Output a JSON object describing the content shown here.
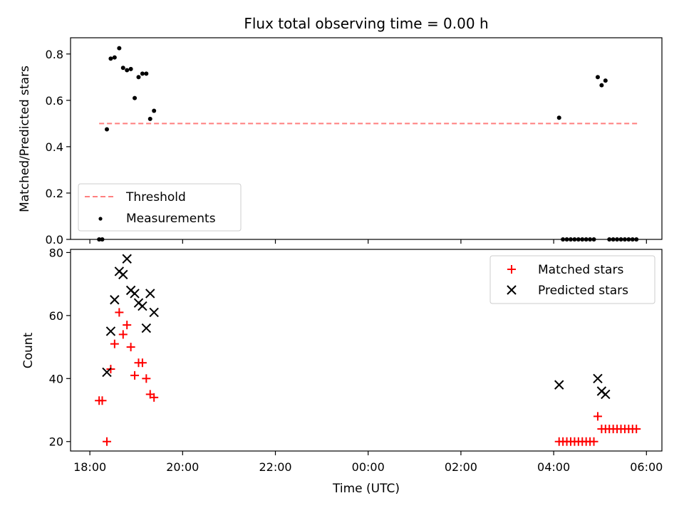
{
  "title": "Flux total observing time = 0.00 h",
  "colors": {
    "threshold": "#ff7f7f",
    "measurements": "#000000",
    "matched": "#ff0000",
    "predicted": "#000000"
  },
  "chart_data": [
    {
      "type": "scatter",
      "title": "Flux total observing time = 0.00 h",
      "xlabel": "",
      "ylabel": "Matched/Predicted stars",
      "xlim": [
        "2023-01-01T17:35",
        "2023-01-02T06:20"
      ],
      "ylim": [
        0,
        0.87
      ],
      "yticks": [
        0.0,
        0.2,
        0.4,
        0.6,
        0.8
      ],
      "ytick_labels": [
        "0.0",
        "0.2",
        "0.4",
        "0.6",
        "0.8"
      ],
      "xticks": [
        "2023-01-01T18:00",
        "2023-01-01T20:00",
        "2023-01-01T22:00",
        "2023-01-02T00:00",
        "2023-01-02T02:00",
        "2023-01-02T04:00",
        "2023-01-02T06:00"
      ],
      "xtick_labels": [
        "",
        "",
        "",
        "",
        "",
        "",
        ""
      ],
      "grid": false,
      "legend": "lower-left",
      "series": [
        {
          "name": "Threshold",
          "kind": "line",
          "style": "dashed",
          "x": [
            "2023-01-01T18:12",
            "2023-01-02T05:48"
          ],
          "y": [
            0.5,
            0.5
          ]
        },
        {
          "name": "Measurements",
          "kind": "scatter",
          "x": [
            "2023-01-01T18:12",
            "2023-01-01T18:16",
            "2023-01-01T18:22",
            "2023-01-01T18:27",
            "2023-01-01T18:32",
            "2023-01-01T18:38",
            "2023-01-01T18:43",
            "2023-01-01T18:48",
            "2023-01-01T18:53",
            "2023-01-01T18:58",
            "2023-01-01T19:03",
            "2023-01-01T19:08",
            "2023-01-01T19:13",
            "2023-01-01T19:18",
            "2023-01-01T19:23",
            "2023-01-02T04:07",
            "2023-01-02T04:12",
            "2023-01-02T04:17",
            "2023-01-02T04:22",
            "2023-01-02T04:27",
            "2023-01-02T04:32",
            "2023-01-02T04:37",
            "2023-01-02T04:42",
            "2023-01-02T04:47",
            "2023-01-02T04:52",
            "2023-01-02T04:57",
            "2023-01-02T05:02",
            "2023-01-02T05:07",
            "2023-01-02T05:12",
            "2023-01-02T05:17",
            "2023-01-02T05:22",
            "2023-01-02T05:27",
            "2023-01-02T05:32",
            "2023-01-02T05:37",
            "2023-01-02T05:42",
            "2023-01-02T05:47"
          ],
          "y": [
            0.0,
            0.0,
            0.475,
            0.78,
            0.785,
            0.825,
            0.74,
            0.73,
            0.735,
            0.61,
            0.7,
            0.715,
            0.715,
            0.52,
            0.555,
            0.525,
            0.0,
            0.0,
            0.0,
            0.0,
            0.0,
            0.0,
            0.0,
            0.0,
            0.0,
            0.7,
            0.665,
            0.685,
            0.0,
            0.0,
            0.0,
            0.0,
            0.0,
            0.0,
            0.0,
            0.0
          ]
        }
      ]
    },
    {
      "type": "scatter",
      "xlabel": "Time (UTC)",
      "ylabel": "Count",
      "xlim": [
        "2023-01-01T17:35",
        "2023-01-02T06:20"
      ],
      "ylim": [
        17,
        81
      ],
      "yticks": [
        20,
        40,
        60,
        80
      ],
      "ytick_labels": [
        "20",
        "40",
        "60",
        "80"
      ],
      "xticks": [
        "2023-01-01T18:00",
        "2023-01-01T20:00",
        "2023-01-01T22:00",
        "2023-01-02T00:00",
        "2023-01-02T02:00",
        "2023-01-02T04:00",
        "2023-01-02T06:00"
      ],
      "xtick_labels": [
        "18:00",
        "20:00",
        "22:00",
        "00:00",
        "02:00",
        "04:00",
        "06:00"
      ],
      "grid": false,
      "legend": "top-right",
      "series": [
        {
          "name": "Matched stars",
          "kind": "scatter",
          "marker": "+",
          "x": [
            "2023-01-01T18:12",
            "2023-01-01T18:16",
            "2023-01-01T18:22",
            "2023-01-01T18:27",
            "2023-01-01T18:32",
            "2023-01-01T18:38",
            "2023-01-01T18:43",
            "2023-01-01T18:48",
            "2023-01-01T18:53",
            "2023-01-01T18:58",
            "2023-01-01T19:03",
            "2023-01-01T19:08",
            "2023-01-01T19:13",
            "2023-01-01T19:18",
            "2023-01-01T19:23",
            "2023-01-02T04:07",
            "2023-01-02T04:12",
            "2023-01-02T04:17",
            "2023-01-02T04:22",
            "2023-01-02T04:27",
            "2023-01-02T04:32",
            "2023-01-02T04:37",
            "2023-01-02T04:42",
            "2023-01-02T04:47",
            "2023-01-02T04:52",
            "2023-01-02T04:57",
            "2023-01-02T05:02",
            "2023-01-02T05:07",
            "2023-01-02T05:12",
            "2023-01-02T05:17",
            "2023-01-02T05:22",
            "2023-01-02T05:27",
            "2023-01-02T05:32",
            "2023-01-02T05:37",
            "2023-01-02T05:42",
            "2023-01-02T05:47"
          ],
          "y": [
            33,
            33,
            20,
            43,
            51,
            61,
            54,
            57,
            50,
            41,
            45,
            45,
            40,
            35,
            34,
            20,
            20,
            20,
            20,
            20,
            20,
            20,
            20,
            20,
            20,
            28,
            24,
            24,
            24,
            24,
            24,
            24,
            24,
            24,
            24,
            24
          ]
        },
        {
          "name": "Predicted stars",
          "kind": "scatter",
          "marker": "x",
          "x": [
            "2023-01-01T18:22",
            "2023-01-01T18:27",
            "2023-01-01T18:32",
            "2023-01-01T18:38",
            "2023-01-01T18:43",
            "2023-01-01T18:48",
            "2023-01-01T18:53",
            "2023-01-01T18:58",
            "2023-01-01T19:03",
            "2023-01-01T19:08",
            "2023-01-01T19:13",
            "2023-01-01T19:18",
            "2023-01-01T19:23",
            "2023-01-02T04:07",
            "2023-01-02T04:57",
            "2023-01-02T05:02",
            "2023-01-02T05:07"
          ],
          "y": [
            42,
            55,
            65,
            74,
            73,
            78,
            68,
            67,
            64,
            63,
            56,
            67,
            61,
            38,
            40,
            36,
            35
          ]
        }
      ]
    }
  ]
}
